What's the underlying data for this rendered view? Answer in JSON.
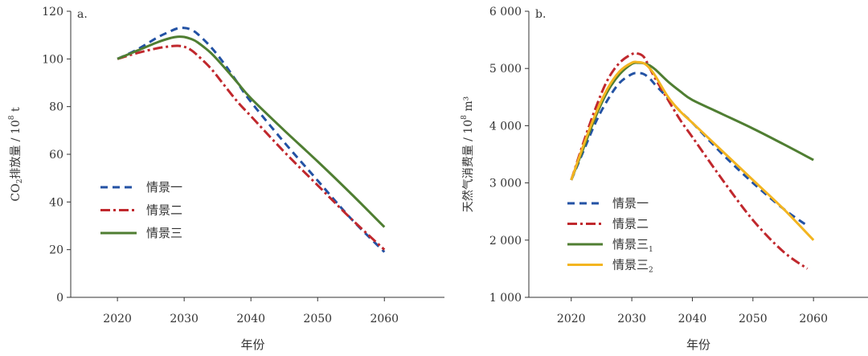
{
  "chart_data": [
    {
      "type": "line",
      "panel_label": "a.",
      "xlabel": "年份",
      "ylabel": {
        "prefix": "CO",
        "sub": "2",
        "main": "排放量 / 10",
        "sup": "8",
        "suffix": " t"
      },
      "xlim": [
        2013,
        2069
      ],
      "ylim": [
        0,
        120
      ],
      "x_ticks": [
        2020,
        2030,
        2040,
        2050,
        2060
      ],
      "x_tick_labels": [
        "2020",
        "2030",
        "2040",
        "2050",
        "2060"
      ],
      "y_ticks": [
        0,
        20,
        40,
        60,
        80,
        100,
        120
      ],
      "y_tick_labels": [
        "0",
        "20",
        "40",
        "60",
        "80",
        "100",
        "120"
      ],
      "series": [
        {
          "name": "情景一",
          "sub": "",
          "color": "#2352a4",
          "dash": "9,6",
          "x": [
            2020,
            2023,
            2026,
            2028,
            2029,
            2030,
            2031,
            2032,
            2034,
            2036,
            2038,
            2040,
            2045,
            2050,
            2055,
            2060
          ],
          "y": [
            100,
            104,
            109,
            111.7,
            112.8,
            113.0,
            112.3,
            110.5,
            105,
            98,
            90,
            82,
            65,
            49,
            33,
            19
          ]
        },
        {
          "name": "情景二",
          "sub": "",
          "color": "#c0282d",
          "dash": "12,4,3,4",
          "x": [
            2020,
            2023,
            2026,
            2028,
            2029,
            2030,
            2031,
            2032,
            2034,
            2036,
            2038,
            2040,
            2045,
            2050,
            2055,
            2060
          ],
          "y": [
            100,
            102.5,
            104.5,
            105.3,
            105.5,
            105.1,
            103.8,
            101.5,
            96,
            89,
            82,
            76,
            61,
            47,
            33,
            20
          ]
        },
        {
          "name": "情景三",
          "sub": "",
          "color": "#4f7e32",
          "dash": "",
          "x": [
            2020,
            2023,
            2026,
            2028,
            2029,
            2030,
            2031,
            2032,
            2034,
            2036,
            2038,
            2040,
            2045,
            2050,
            2055,
            2060
          ],
          "y": [
            100,
            103.5,
            107,
            108.8,
            109.3,
            109.2,
            108.4,
            107,
            102.5,
            96.5,
            90,
            83.5,
            70,
            57,
            43.5,
            29.5
          ]
        }
      ]
    },
    {
      "type": "line",
      "panel_label": "b.",
      "xlabel": "年份",
      "ylabel": {
        "prefix": "",
        "sub": "",
        "main": "天然气消费量 / 10",
        "sup": "8",
        "suffix": " m³"
      },
      "xlim": [
        2013,
        2069
      ],
      "ylim": [
        1000,
        6000
      ],
      "x_ticks": [
        2020,
        2030,
        2040,
        2050,
        2060
      ],
      "x_tick_labels": [
        "2020",
        "2030",
        "2040",
        "2050",
        "2060"
      ],
      "y_ticks": [
        1000,
        2000,
        3000,
        4000,
        5000,
        6000
      ],
      "y_tick_labels": [
        "1 000",
        "2 000",
        "3 000",
        "4 000",
        "5 000",
        "6 000"
      ],
      "series": [
        {
          "name": "情景一",
          "sub": "",
          "color": "#2352a4",
          "dash": "9,6",
          "x": [
            2020,
            2022,
            2024,
            2026,
            2028,
            2030,
            2031,
            2032,
            2033,
            2034,
            2036,
            2038,
            2040,
            2045,
            2050,
            2055,
            2059
          ],
          "y": [
            3050,
            3550,
            4050,
            4450,
            4750,
            4900,
            4920,
            4900,
            4820,
            4700,
            4480,
            4250,
            4050,
            3500,
            3000,
            2550,
            2250
          ]
        },
        {
          "name": "情景二",
          "sub": "",
          "color": "#c0282d",
          "dash": "12,4,3,4",
          "x": [
            2020,
            2022,
            2024,
            2026,
            2028,
            2030,
            2031,
            2032,
            2033,
            2034,
            2036,
            2038,
            2040,
            2045,
            2050,
            2055,
            2059
          ],
          "y": [
            3050,
            3700,
            4300,
            4800,
            5100,
            5250,
            5260,
            5200,
            5000,
            4800,
            4450,
            4100,
            3800,
            3050,
            2350,
            1800,
            1500
          ]
        },
        {
          "name": "情景三",
          "sub": "1",
          "color": "#4f7e32",
          "dash": "",
          "x": [
            2020,
            2022,
            2024,
            2026,
            2028,
            2030,
            2031,
            2032,
            2033,
            2034,
            2036,
            2038,
            2040,
            2045,
            2050,
            2055,
            2060
          ],
          "y": [
            3050,
            3600,
            4150,
            4600,
            4900,
            5080,
            5100,
            5090,
            5050,
            4970,
            4770,
            4600,
            4450,
            4200,
            3950,
            3680,
            3400
          ]
        },
        {
          "name": "情景三",
          "sub": "2",
          "color": "#f3b520",
          "dash": "",
          "x": [
            2020,
            2022,
            2024,
            2026,
            2028,
            2030,
            2031,
            2032,
            2033,
            2034,
            2036,
            2038,
            2040,
            2045,
            2050,
            2055,
            2060
          ],
          "y": [
            3050,
            3650,
            4200,
            4650,
            4950,
            5100,
            5110,
            5090,
            5000,
            4850,
            4500,
            4250,
            4050,
            3550,
            3050,
            2550,
            2000
          ]
        }
      ]
    }
  ]
}
